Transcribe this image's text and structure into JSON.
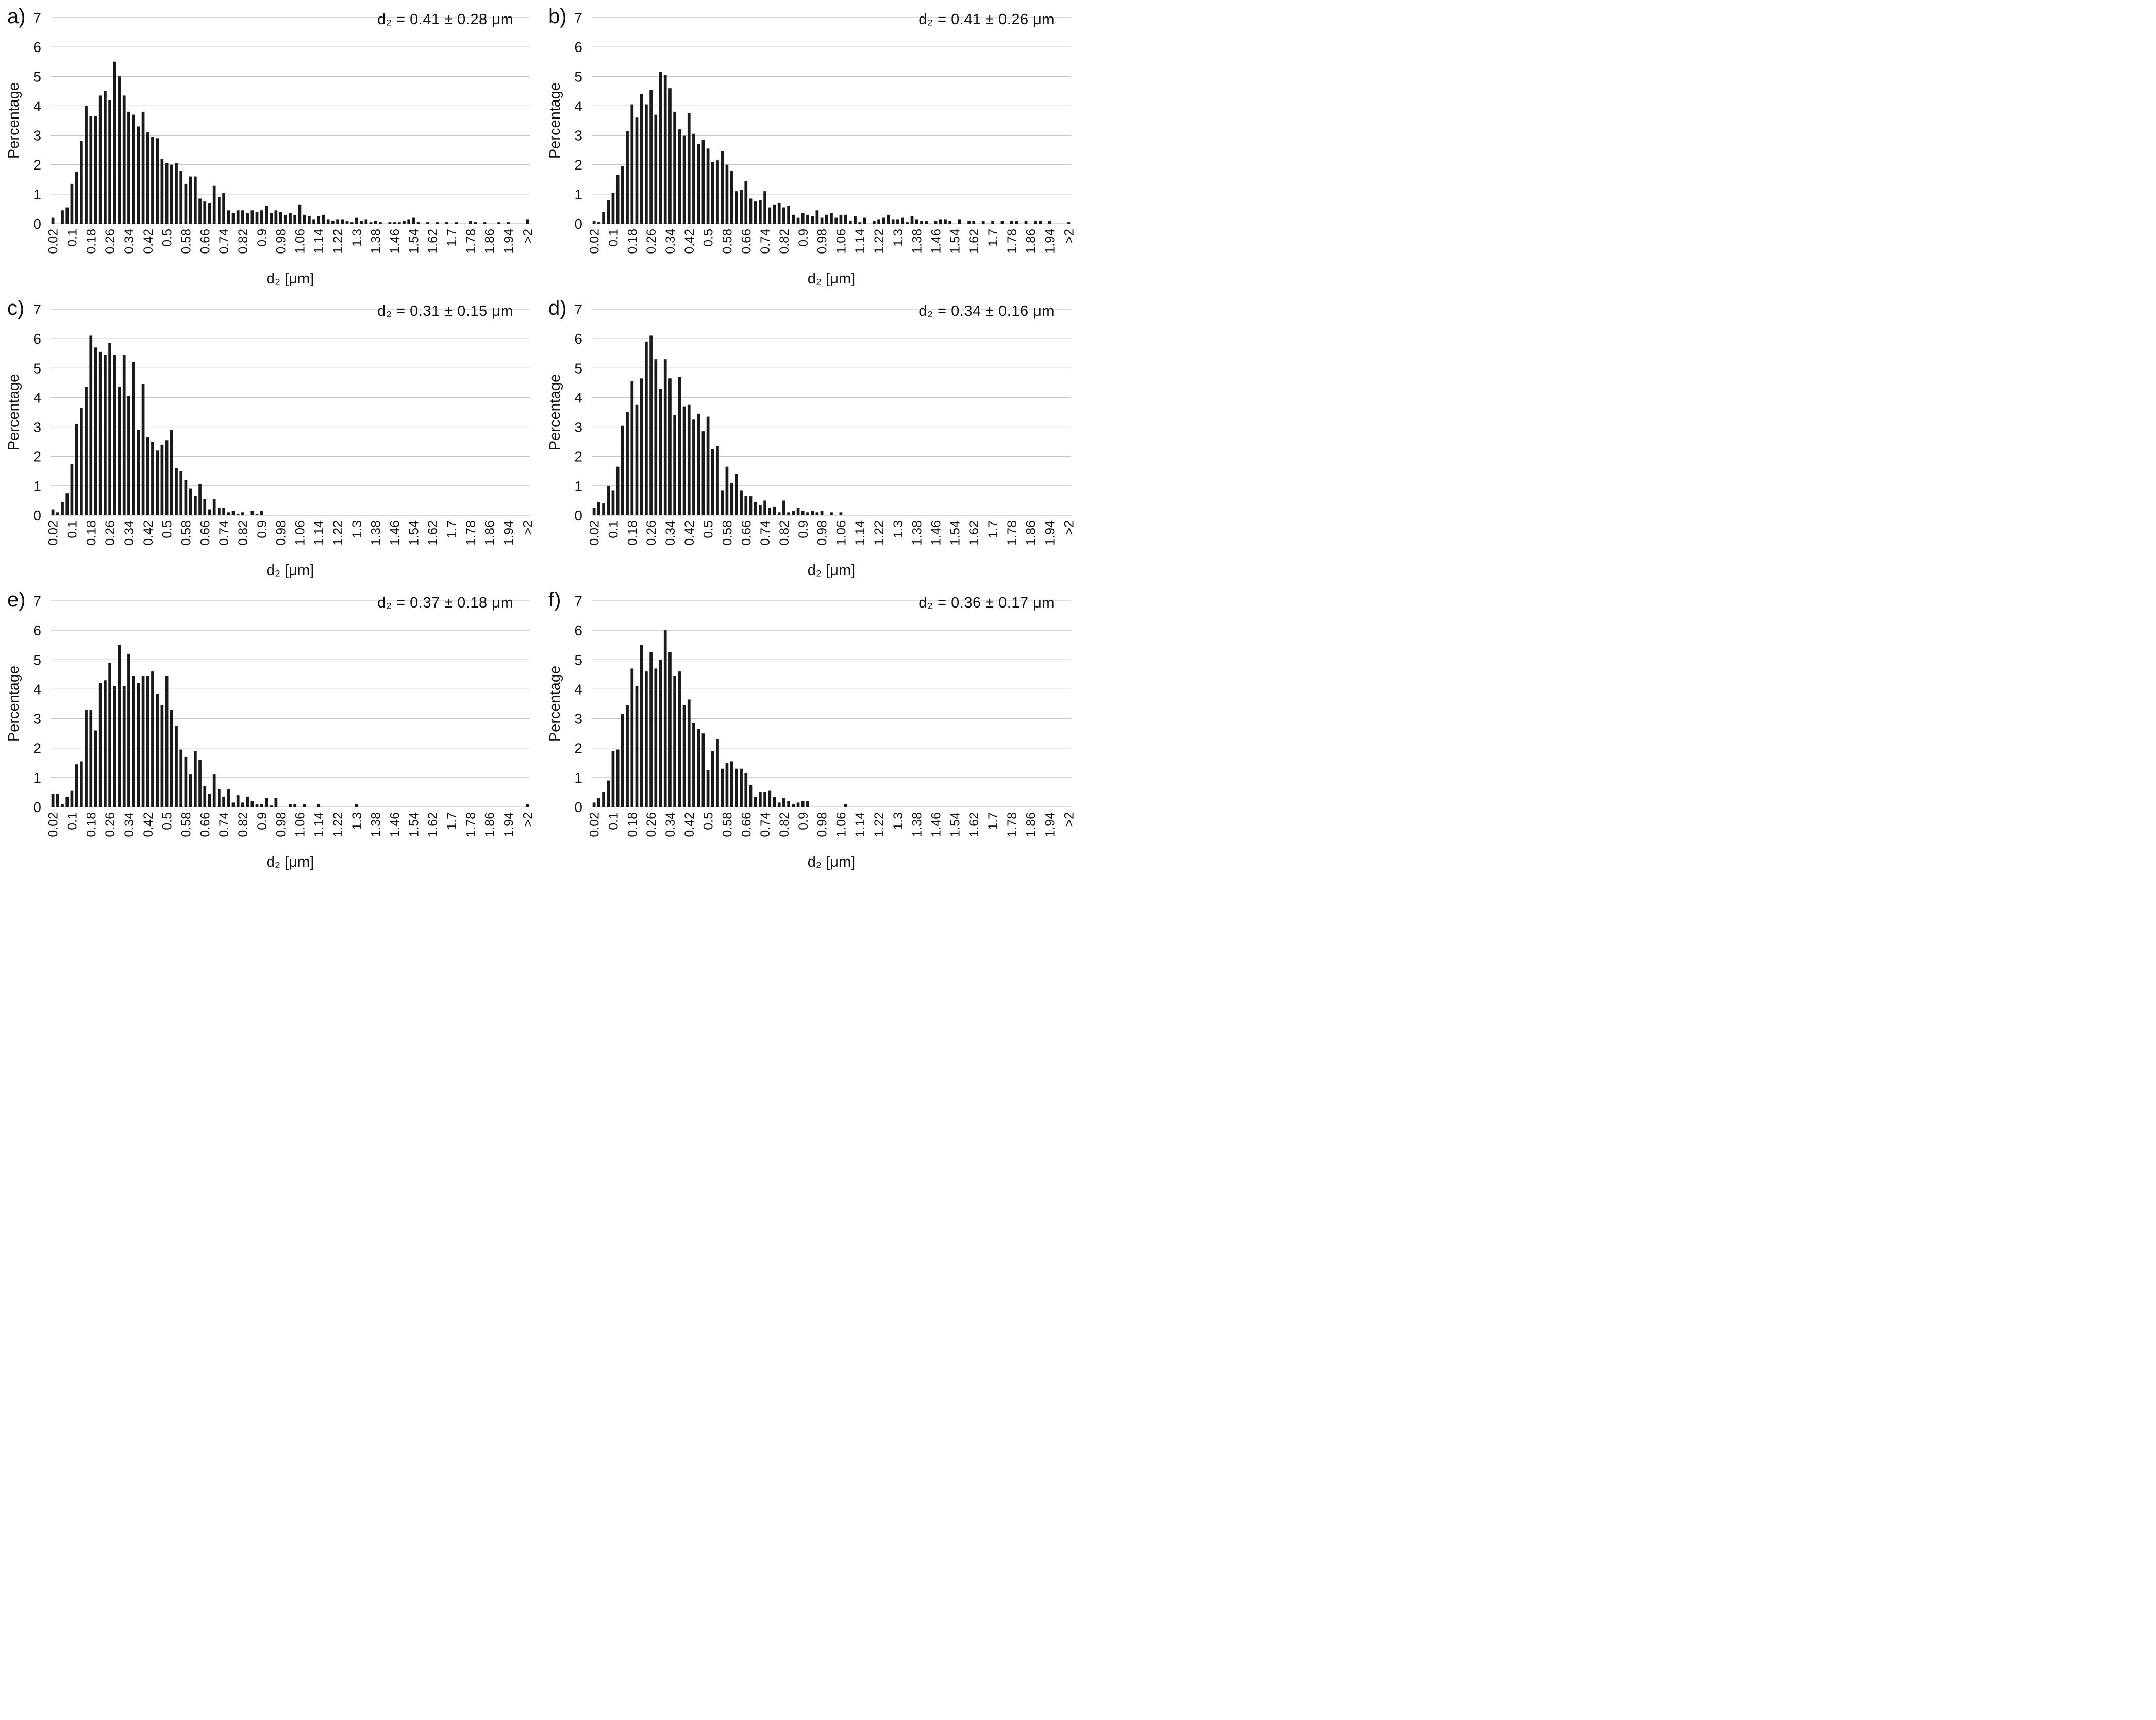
{
  "style": {
    "bar_color": "#1a1a1a",
    "grid_color": "#c6c6c6",
    "text_color": "#111111",
    "background": "#ffffff"
  },
  "axes": {
    "x": {
      "label": "d₂ [μm]",
      "tick_labels": [
        "0.02",
        "0.1",
        "0.18",
        "0.26",
        "0.34",
        "0.42",
        "0.5",
        "0.58",
        "0.66",
        "0.74",
        "0.82",
        "0.9",
        "0.98",
        "1.06",
        "1.14",
        "1.22",
        "1.3",
        "1.38",
        "1.46",
        "1.54",
        "1.62",
        "1.7",
        "1.78",
        "1.86",
        "1.94",
        ">2"
      ]
    },
    "y": {
      "label": "Percentage",
      "ticks": [
        0,
        1,
        2,
        3,
        4,
        5,
        6,
        7
      ],
      "max": 7
    }
  },
  "chart_data": [
    {
      "type": "bar",
      "letter": "a)",
      "annotation": "d₂ = 0.41 ± 0.28 μm",
      "xlabel": "d₂ [μm]",
      "ylabel": "Percentage",
      "ylim": [
        0,
        7
      ],
      "grid": true,
      "bin_start": 0.02,
      "bin_step": 0.02,
      "last_bin_label": ">2",
      "values": [
        0.2,
        0,
        0.45,
        0.55,
        1.35,
        1.75,
        2.8,
        4.0,
        3.65,
        3.65,
        4.35,
        4.5,
        4.2,
        5.5,
        5.0,
        4.35,
        3.8,
        3.7,
        3.3,
        3.8,
        3.1,
        2.95,
        2.9,
        2.2,
        2.05,
        2.0,
        2.05,
        1.8,
        1.35,
        1.6,
        1.6,
        0.85,
        0.75,
        0.7,
        1.3,
        0.9,
        1.05,
        0.45,
        0.35,
        0.45,
        0.45,
        0.35,
        0.45,
        0.4,
        0.45,
        0.6,
        0.35,
        0.45,
        0.4,
        0.3,
        0.35,
        0.3,
        0.65,
        0.3,
        0.25,
        0.15,
        0.25,
        0.3,
        0.15,
        0.1,
        0.15,
        0.15,
        0.1,
        0.05,
        0.2,
        0.1,
        0.15,
        0.05,
        0.1,
        0.05,
        0,
        0.05,
        0.05,
        0.05,
        0.1,
        0.15,
        0.2,
        0.05,
        0,
        0.05,
        0,
        0.05,
        0,
        0.05,
        0,
        0.05,
        0,
        0,
        0.1,
        0.05,
        0,
        0.05,
        0,
        0,
        0.05,
        0,
        0.05,
        0,
        0,
        0,
        0.15
      ]
    },
    {
      "type": "bar",
      "letter": "b)",
      "annotation": "d₂ = 0.41 ± 0.26 μm",
      "xlabel": "d₂ [μm]",
      "ylabel": "Percentage",
      "ylim": [
        0,
        7
      ],
      "grid": true,
      "bin_start": 0.02,
      "bin_step": 0.02,
      "last_bin_label": ">2",
      "values": [
        0.1,
        0.05,
        0.4,
        0.8,
        1.05,
        1.65,
        1.95,
        3.15,
        4.05,
        3.6,
        4.4,
        4.05,
        4.55,
        3.7,
        5.15,
        5.05,
        4.6,
        3.8,
        3.2,
        3.0,
        3.75,
        3.05,
        2.7,
        2.85,
        2.55,
        2.1,
        2.15,
        2.45,
        2.0,
        1.8,
        1.1,
        1.15,
        1.45,
        0.85,
        0.75,
        0.8,
        1.1,
        0.55,
        0.65,
        0.7,
        0.55,
        0.6,
        0.3,
        0.2,
        0.35,
        0.3,
        0.25,
        0.45,
        0.2,
        0.3,
        0.35,
        0.2,
        0.3,
        0.3,
        0.1,
        0.25,
        0.05,
        0.2,
        0,
        0.1,
        0.15,
        0.2,
        0.3,
        0.15,
        0.15,
        0.2,
        0.05,
        0.25,
        0.15,
        0.1,
        0.1,
        0,
        0.1,
        0.15,
        0.15,
        0.1,
        0,
        0.15,
        0,
        0.1,
        0.1,
        0,
        0.1,
        0,
        0.1,
        0,
        0.1,
        0,
        0.1,
        0.1,
        0,
        0.1,
        0,
        0.1,
        0.1,
        0,
        0.1,
        0,
        0,
        0,
        0.05
      ]
    },
    {
      "type": "bar",
      "letter": "c)",
      "annotation": "d₂ = 0.31 ± 0.15 μm",
      "xlabel": "d₂ [μm]",
      "ylabel": "Percentage",
      "ylim": [
        0,
        7
      ],
      "grid": true,
      "bin_start": 0.02,
      "bin_step": 0.02,
      "last_bin_label": ">2",
      "values": [
        0.2,
        0.1,
        0.45,
        0.75,
        1.75,
        3.1,
        3.65,
        4.35,
        6.1,
        5.7,
        5.55,
        5.45,
        5.85,
        5.45,
        4.35,
        5.45,
        4.05,
        5.2,
        2.9,
        4.45,
        2.65,
        2.5,
        2.2,
        2.4,
        2.55,
        2.9,
        1.6,
        1.5,
        1.2,
        0.9,
        0.65,
        1.05,
        0.55,
        0.2,
        0.55,
        0.25,
        0.25,
        0.1,
        0.15,
        0.05,
        0.1,
        0,
        0.15,
        0.05,
        0.15,
        0,
        0,
        0,
        0,
        0,
        0,
        0,
        0,
        0,
        0,
        0,
        0,
        0,
        0,
        0,
        0,
        0,
        0,
        0,
        0,
        0,
        0,
        0,
        0,
        0,
        0,
        0,
        0,
        0,
        0,
        0,
        0,
        0,
        0,
        0,
        0,
        0,
        0,
        0,
        0,
        0,
        0,
        0,
        0,
        0,
        0,
        0,
        0,
        0,
        0,
        0,
        0,
        0,
        0,
        0,
        0
      ]
    },
    {
      "type": "bar",
      "letter": "d)",
      "annotation": "d₂ = 0.34 ± 0.16 μm",
      "xlabel": "d₂ [μm]",
      "ylabel": "Percentage",
      "ylim": [
        0,
        7
      ],
      "grid": true,
      "bin_start": 0.02,
      "bin_step": 0.02,
      "last_bin_label": ">2",
      "values": [
        0.25,
        0.45,
        0.4,
        1.0,
        0.85,
        1.65,
        3.05,
        3.5,
        4.55,
        3.75,
        4.65,
        5.9,
        6.1,
        5.3,
        4.3,
        5.3,
        4.65,
        3.4,
        4.7,
        3.7,
        3.75,
        3.25,
        3.45,
        2.85,
        3.35,
        2.25,
        2.35,
        0.85,
        1.65,
        1.1,
        1.4,
        0.85,
        0.65,
        0.65,
        0.45,
        0.35,
        0.5,
        0.25,
        0.3,
        0.1,
        0.5,
        0.1,
        0.15,
        0.25,
        0.15,
        0.1,
        0.15,
        0.1,
        0.15,
        0,
        0.1,
        0,
        0.1,
        0,
        0,
        0,
        0,
        0,
        0,
        0,
        0,
        0,
        0,
        0,
        0,
        0,
        0,
        0,
        0,
        0,
        0,
        0,
        0,
        0,
        0,
        0,
        0,
        0,
        0,
        0,
        0,
        0,
        0,
        0,
        0,
        0,
        0,
        0,
        0,
        0,
        0,
        0,
        0,
        0,
        0,
        0,
        0,
        0,
        0,
        0,
        0
      ]
    },
    {
      "type": "bar",
      "letter": "e)",
      "annotation": "d₂ = 0.37 ± 0.18 μm",
      "xlabel": "d₂ [μm]",
      "ylabel": "Percentage",
      "ylim": [
        0,
        7
      ],
      "grid": true,
      "bin_start": 0.02,
      "bin_step": 0.02,
      "last_bin_label": ">2",
      "values": [
        0.45,
        0.45,
        0.1,
        0.35,
        0.55,
        1.45,
        1.55,
        3.3,
        3.3,
        2.6,
        4.2,
        4.3,
        4.9,
        4.1,
        5.5,
        4.1,
        5.2,
        4.45,
        4.2,
        4.45,
        4.45,
        4.6,
        3.85,
        3.45,
        4.45,
        3.3,
        2.75,
        1.95,
        1.7,
        1.1,
        1.9,
        1.6,
        0.7,
        0.45,
        1.1,
        0.6,
        0.35,
        0.6,
        0.15,
        0.4,
        0.15,
        0.35,
        0.2,
        0.1,
        0.1,
        0.3,
        0.05,
        0.3,
        0,
        0,
        0.1,
        0.1,
        0,
        0.1,
        0,
        0,
        0.1,
        0,
        0,
        0,
        0,
        0,
        0,
        0,
        0.1,
        0,
        0,
        0,
        0,
        0,
        0,
        0,
        0,
        0,
        0,
        0,
        0,
        0,
        0,
        0,
        0,
        0,
        0,
        0,
        0,
        0,
        0,
        0,
        0,
        0,
        0,
        0,
        0,
        0,
        0,
        0,
        0,
        0,
        0,
        0,
        0.1
      ]
    },
    {
      "type": "bar",
      "letter": "f)",
      "annotation": "d₂ = 0.36 ± 0.17 μm",
      "xlabel": "d₂ [μm]",
      "ylabel": "Percentage",
      "ylim": [
        0,
        7
      ],
      "grid": true,
      "bin_start": 0.02,
      "bin_step": 0.02,
      "last_bin_label": ">2",
      "values": [
        0.15,
        0.3,
        0.5,
        0.9,
        1.9,
        1.95,
        3.15,
        3.45,
        4.7,
        4.1,
        5.5,
        4.6,
        5.25,
        4.7,
        5.0,
        6.0,
        5.25,
        4.45,
        4.6,
        3.45,
        3.65,
        2.85,
        2.65,
        2.5,
        1.25,
        1.9,
        2.3,
        1.3,
        1.5,
        1.55,
        1.3,
        1.3,
        1.15,
        0.75,
        0.35,
        0.5,
        0.5,
        0.55,
        0.35,
        0.15,
        0.3,
        0.2,
        0.1,
        0.15,
        0.2,
        0.2,
        0,
        0,
        0,
        0,
        0,
        0,
        0,
        0.1,
        0,
        0,
        0,
        0,
        0,
        0,
        0,
        0,
        0,
        0,
        0,
        0,
        0,
        0,
        0,
        0,
        0,
        0,
        0,
        0,
        0,
        0,
        0,
        0,
        0,
        0,
        0,
        0,
        0,
        0,
        0,
        0,
        0,
        0,
        0,
        0,
        0,
        0,
        0,
        0,
        0,
        0,
        0,
        0,
        0,
        0,
        0
      ]
    }
  ]
}
